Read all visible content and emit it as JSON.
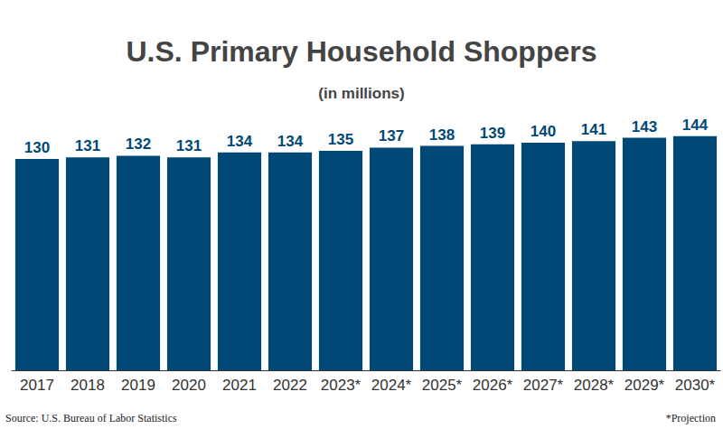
{
  "chart_data": {
    "type": "bar",
    "title": "U.S. Primary Household Shoppers",
    "subtitle": "(in millions)",
    "categories": [
      "2017",
      "2018",
      "2019",
      "2020",
      "2021",
      "2022",
      "2023*",
      "2024*",
      "2025*",
      "2026*",
      "2027*",
      "2028*",
      "2029*",
      "2030*"
    ],
    "values": [
      130,
      131,
      132,
      131,
      134,
      134,
      135,
      137,
      138,
      139,
      140,
      141,
      143,
      144
    ],
    "color": "#004876",
    "ylim": [
      0,
      150
    ],
    "yticks": [
      0,
      150
    ],
    "grid": false,
    "data_labels": true,
    "tick_labels": "x",
    "source": "Source: U.S. Bureau of Labor Statistics",
    "note": "*Projection"
  }
}
